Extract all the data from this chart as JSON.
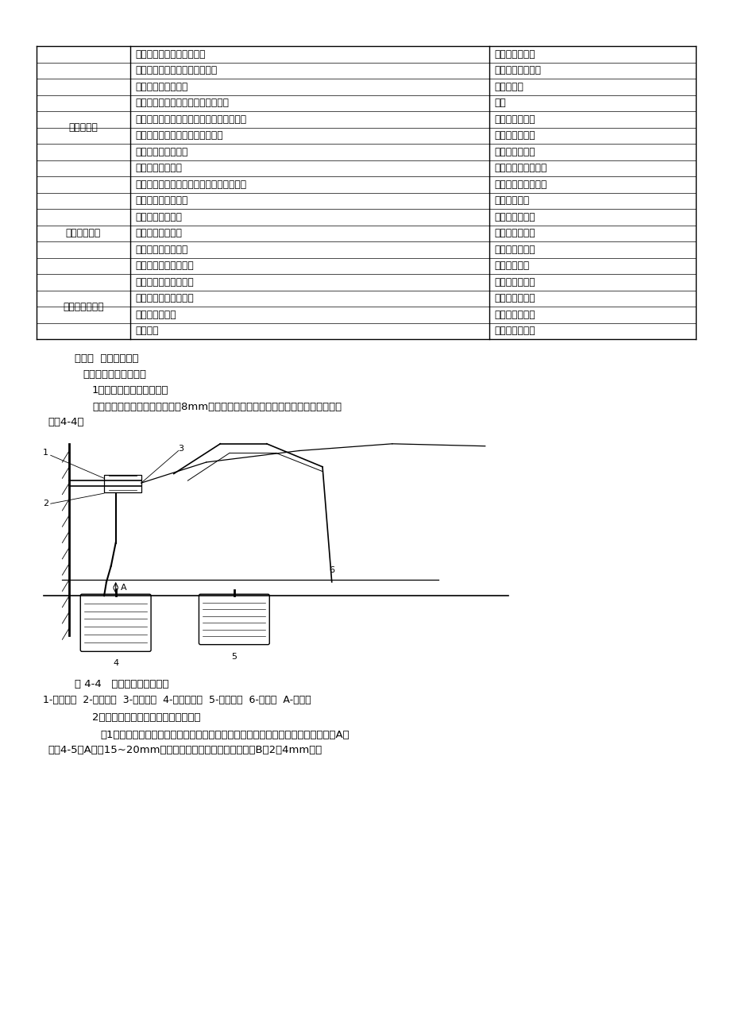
{
  "background_color": "#ffffff",
  "table_rows": [
    [
      "",
      "离合器摩擦片有损伤或油污",
      "更换摩擦片总成"
    ],
    [
      "离合器振动",
      "离合器摩擦片磨亮（呈玻璃状）",
      "修理或更换摩擦片"
    ],
    [
      "",
      "离合器摩擦片有油污",
      "更换摩擦片"
    ],
    [
      "",
      "分离轴承在变速器轴承套上滑动不良",
      "润滑"
    ],
    [
      "",
      "离合器摩擦片总成摆振，或摩擦片接触不良",
      "更换摩擦片总成"
    ],
    [
      "",
      "离合器摩擦片总成的减振扭簧变弱",
      "更换摩擦片总成"
    ],
    [
      "",
      "离合摩擦片铆钉松动",
      "更换摩擦片总成"
    ],
    [
      "",
      "压盘或飞轮面变形",
      "更换压盘总成或飞轮"
    ],
    [
      "",
      "发动机安装垫损坏，或安装螺栓或螺母松动",
      "拧紧，或更换安装垫"
    ],
    [
      "离合器有噪声",
      "分离轴承磨损或损坏",
      "更换分离轴承"
    ],
    [
      "",
      "输入轴前轴承磨损",
      "更换输入轴轴承"
    ],
    [
      "",
      "离合器摩擦片异响",
      "更换摩擦片总成"
    ],
    [
      "",
      "离合器摩擦片有裂纹",
      "更换摩擦片总成"
    ],
    [
      "",
      "压盘和膜片弹簧有异响",
      "更换压盘总成"
    ],
    [
      "离合器不能脱开",
      "离合器摩擦片浸有油液",
      "更换摩擦片总成"
    ],
    [
      "",
      "离合器摩擦片磨损严重",
      "更换摩擦片总成"
    ],
    [
      "",
      "铆钉头露出片面",
      "更换摩擦片总成"
    ],
    [
      "",
      "扭簧变弱",
      "更换摩擦片总成"
    ]
  ],
  "merged_groups": [
    {
      "label": "离合器振动",
      "start": 1,
      "end": 8
    },
    {
      "label": "离合器有噪声",
      "start": 9,
      "end": 13
    },
    {
      "label": "离合器不能脱开",
      "start": 14,
      "end": 17
    }
  ],
  "section_title": "第三节  离合器的检修",
  "subsection1": "一、离合器踏板的检修",
  "item1": "1、离合器踏板高度的检查",
  "para1a": "离合器踏板高度比制动踏板高约8mm，否则可调整踏板托架上的调整螺栓进行调整，",
  "para1b": "见图4-4。",
  "fig_caption": "图 4-4   离合器踏板高度调整",
  "fig_labels": "1-调整螺栓  2-锁紧螺母  3-踏板支架  4-离合器踏板  5-制动踏板  6-测量板  A-高度差",
  "subsection2": "2、离合器踏板自由行程的检查与调整",
  "para2_1": "（1）踩离合器踏板，当感到离合器有阻力时，停止踩动，测定离合器踏板自由行程A，",
  "para2_2": "见图4-5。A应为15~20mm，否则调整离合器拉索自由行程（B为2～4mm）。"
}
